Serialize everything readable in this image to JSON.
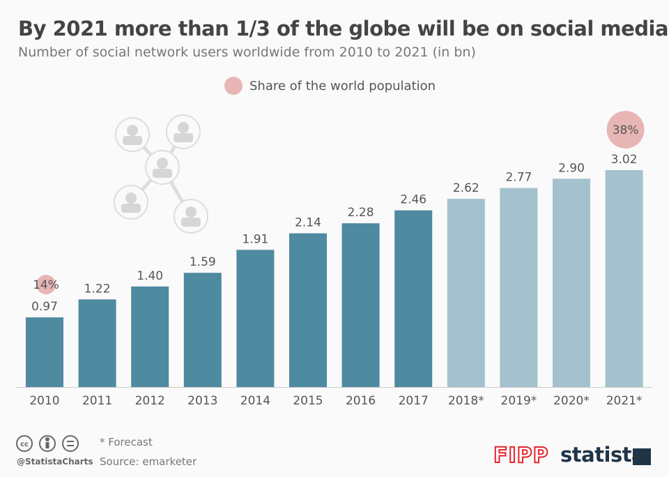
{
  "header": {
    "title": "By 2021 more than 1/3 of the globe will be on social media",
    "subtitle": "Number of social network users worldwide from 2010 to 2021 (in bn)"
  },
  "legend": {
    "label": "Share of the world population",
    "color": "#e8b5b5"
  },
  "chart_data": {
    "type": "bar",
    "categories": [
      "2010",
      "2011",
      "2012",
      "2013",
      "2014",
      "2015",
      "2016",
      "2017",
      "2018*",
      "2019*",
      "2020*",
      "2021*"
    ],
    "values": [
      0.97,
      1.22,
      1.4,
      1.59,
      1.91,
      2.14,
      2.28,
      2.46,
      2.62,
      2.77,
      2.9,
      3.02
    ],
    "value_labels": [
      "0.97",
      "1.22",
      "1.40",
      "1.59",
      "1.91",
      "2.14",
      "2.28",
      "2.46",
      "2.62",
      "2.77",
      "2.90",
      "3.02"
    ],
    "forecast": [
      false,
      false,
      false,
      false,
      false,
      false,
      false,
      false,
      true,
      true,
      true,
      true
    ],
    "share_annotations": [
      {
        "category": "2010",
        "label": "14%"
      },
      {
        "category": "2021*",
        "label": "38%"
      }
    ],
    "colors": {
      "actual": "#4e8aa0",
      "forecast": "#a3c2cd",
      "share": "#e8b5b5"
    },
    "ylim": [
      0,
      3.3
    ],
    "grid": false,
    "legend_position": "top-center"
  },
  "footer": {
    "note": "* Forecast",
    "source": "Source: emarketer",
    "handle": "@StatistaCharts",
    "license_icons": [
      "cc-icon",
      "by-icon",
      "nd-icon"
    ],
    "logos": {
      "fipp": "FIPP",
      "statista": "statista"
    }
  },
  "illustration": {
    "icon": "social-network-icon"
  }
}
